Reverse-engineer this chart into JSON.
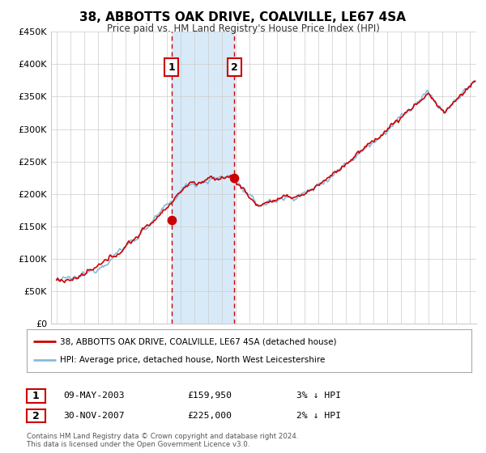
{
  "title": "38, ABBOTTS OAK DRIVE, COALVILLE, LE67 4SA",
  "subtitle": "Price paid vs. HM Land Registry's House Price Index (HPI)",
  "legend_line1": "38, ABBOTTS OAK DRIVE, COALVILLE, LE67 4SA (detached house)",
  "legend_line2": "HPI: Average price, detached house, North West Leicestershire",
  "sale1_date": "09-MAY-2003",
  "sale1_price": "£159,950",
  "sale1_hpi": "3% ↓ HPI",
  "sale1_year": 2003.35,
  "sale1_value": 159950,
  "sale2_date": "30-NOV-2007",
  "sale2_price": "£225,000",
  "sale2_hpi": "2% ↓ HPI",
  "sale2_year": 2007.92,
  "sale2_value": 225000,
  "price_line_color": "#cc0000",
  "hpi_line_color": "#88bbdd",
  "highlight_color": "#d8eaf8",
  "grid_color": "#cccccc",
  "background_color": "#ffffff",
  "ylim": [
    0,
    450000
  ],
  "yticks": [
    0,
    50000,
    100000,
    150000,
    200000,
    250000,
    300000,
    350000,
    400000,
    450000
  ],
  "ytick_labels": [
    "£0",
    "£50K",
    "£100K",
    "£150K",
    "£200K",
    "£250K",
    "£300K",
    "£350K",
    "£400K",
    "£450K"
  ],
  "xlim_start": 1994.6,
  "xlim_end": 2025.5,
  "footer": "Contains HM Land Registry data © Crown copyright and database right 2024.\nThis data is licensed under the Open Government Licence v3.0."
}
